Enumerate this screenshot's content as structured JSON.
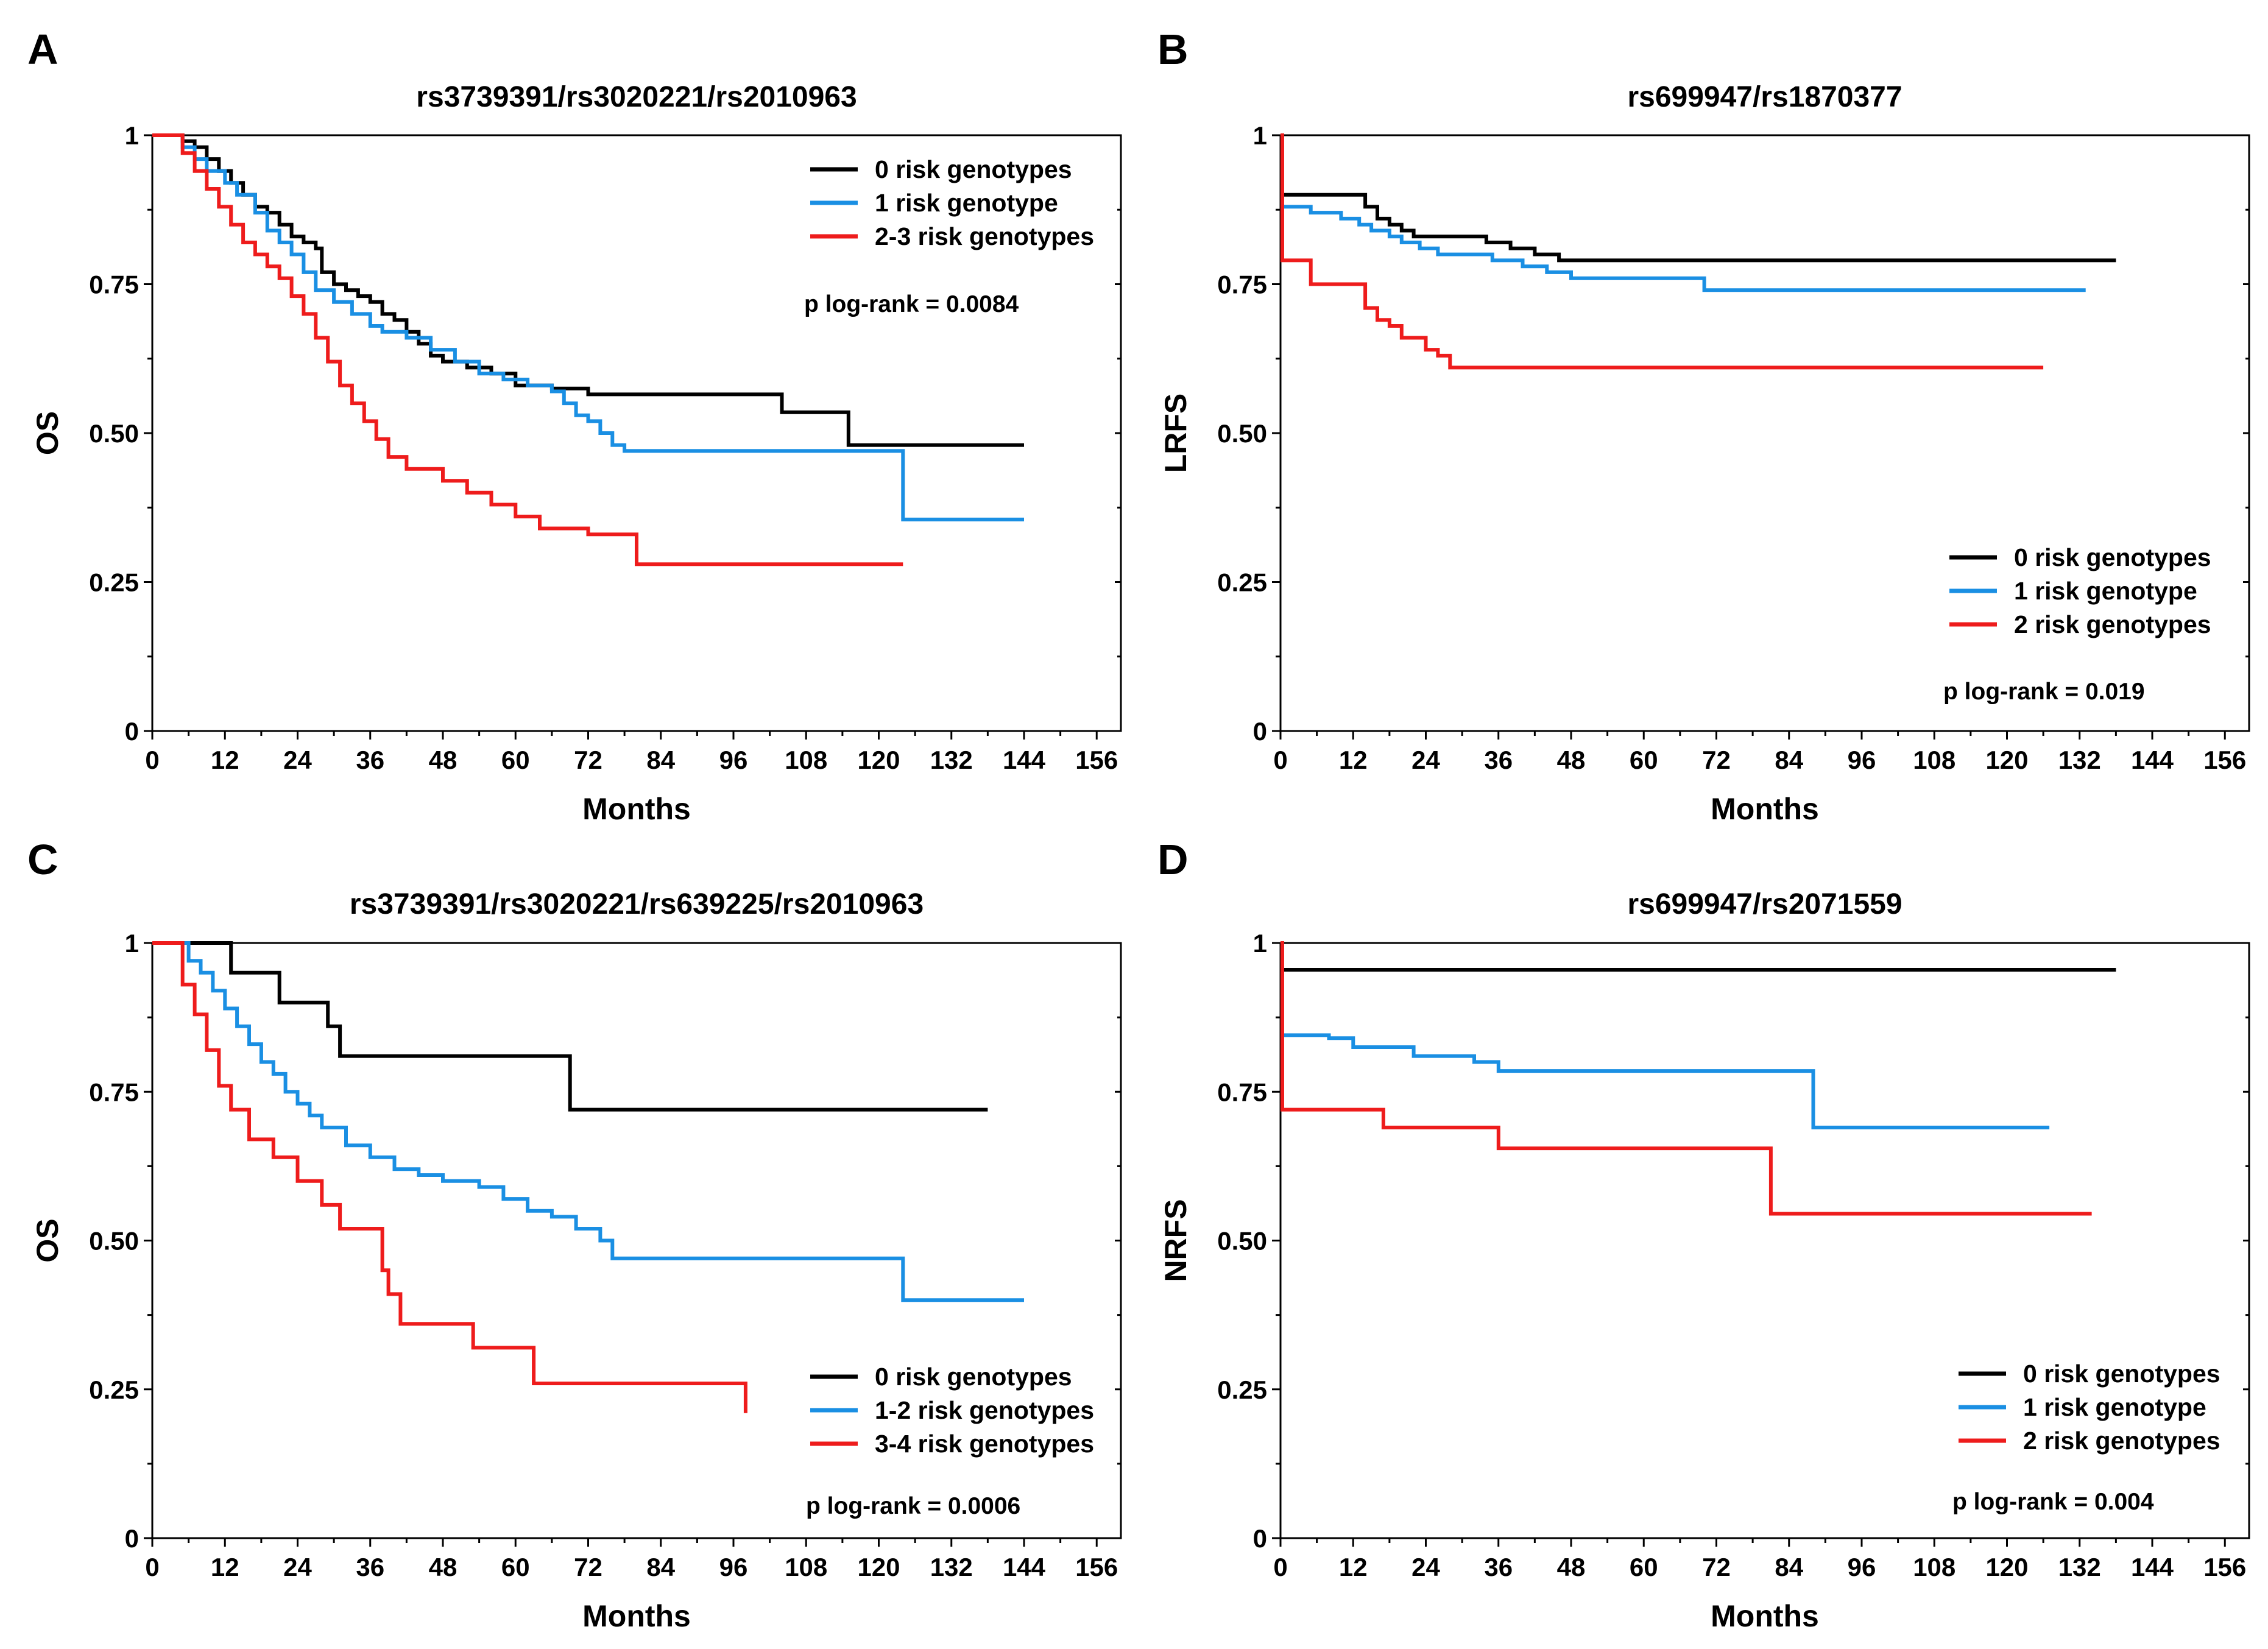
{
  "colors": {
    "black": "#000000",
    "blue": "#1a8fe3",
    "red": "#ee1c1c"
  },
  "chart_data": [
    {
      "type": "line",
      "panel": "A",
      "title": "rs3739391/rs3020221/rs2010963",
      "xlabel": "Months",
      "ylabel": "OS",
      "xlim": [
        0,
        160
      ],
      "ylim": [
        0,
        1
      ],
      "xticks": [
        "0",
        "12",
        "24",
        "36",
        "48",
        "60",
        "72",
        "84",
        "96",
        "108",
        "120",
        "132",
        "144",
        "156"
      ],
      "yticks": [
        {
          "v": 0,
          "label": "0"
        },
        {
          "v": 0.25,
          "label": "0.25"
        },
        {
          "v": 0.5,
          "label": "0.50"
        },
        {
          "v": 0.75,
          "label": "0.75"
        },
        {
          "v": 1,
          "label": "1"
        }
      ],
      "legend_position": "top-right",
      "p_text": "p log-rank = 0.0084",
      "series": [
        {
          "name": "0 risk genotypes",
          "color": "black",
          "x": [
            0,
            5,
            7,
            9,
            11,
            13,
            15,
            17,
            19,
            21,
            23,
            25,
            27,
            28,
            30,
            32,
            34,
            36,
            38,
            40,
            42,
            44,
            46,
            48,
            52,
            56,
            60,
            66,
            72,
            104,
            108,
            115,
            144
          ],
          "y": [
            1,
            0.99,
            0.98,
            0.96,
            0.94,
            0.92,
            0.9,
            0.88,
            0.87,
            0.85,
            0.83,
            0.82,
            0.81,
            0.77,
            0.75,
            0.74,
            0.73,
            0.72,
            0.7,
            0.69,
            0.67,
            0.65,
            0.63,
            0.62,
            0.61,
            0.6,
            0.58,
            0.575,
            0.565,
            0.535,
            0.535,
            0.48,
            0.48
          ]
        },
        {
          "name": "1 risk genotype",
          "color": "blue",
          "x": [
            0,
            5,
            7,
            9,
            12,
            14,
            17,
            19,
            21,
            23,
            25,
            27,
            30,
            33,
            36,
            38,
            42,
            46,
            50,
            54,
            58,
            62,
            66,
            68,
            70,
            72,
            74,
            76,
            78,
            124,
            144
          ],
          "y": [
            1,
            0.98,
            0.96,
            0.94,
            0.92,
            0.9,
            0.87,
            0.84,
            0.82,
            0.8,
            0.77,
            0.74,
            0.72,
            0.7,
            0.68,
            0.67,
            0.66,
            0.64,
            0.62,
            0.6,
            0.59,
            0.58,
            0.57,
            0.55,
            0.53,
            0.52,
            0.5,
            0.48,
            0.47,
            0.355,
            0.355
          ]
        },
        {
          "name": "2-3 risk genotypes",
          "color": "red",
          "x": [
            0,
            5,
            7,
            9,
            11,
            13,
            15,
            17,
            19,
            21,
            23,
            25,
            27,
            29,
            31,
            33,
            35,
            37,
            39,
            42,
            48,
            52,
            56,
            60,
            64,
            72,
            80,
            92,
            108,
            124
          ],
          "y": [
            1,
            0.97,
            0.94,
            0.91,
            0.88,
            0.85,
            0.82,
            0.8,
            0.78,
            0.76,
            0.73,
            0.7,
            0.66,
            0.62,
            0.58,
            0.55,
            0.52,
            0.49,
            0.46,
            0.44,
            0.42,
            0.4,
            0.38,
            0.36,
            0.34,
            0.33,
            0.28,
            0.28,
            0.28,
            0.28
          ]
        }
      ]
    },
    {
      "type": "line",
      "panel": "B",
      "title": "rs699947/rs1870377",
      "xlabel": "Months",
      "ylabel": "LRFS",
      "xlim": [
        0,
        160
      ],
      "ylim": [
        0,
        1
      ],
      "xticks": [
        "0",
        "12",
        "24",
        "36",
        "48",
        "60",
        "72",
        "84",
        "96",
        "108",
        "120",
        "132",
        "144",
        "156"
      ],
      "yticks": [
        {
          "v": 0,
          "label": "0"
        },
        {
          "v": 0.25,
          "label": "0.25"
        },
        {
          "v": 0.5,
          "label": "0.50"
        },
        {
          "v": 0.75,
          "label": "0.75"
        },
        {
          "v": 1,
          "label": "1"
        }
      ],
      "legend_position": "bottom-right",
      "p_text": "p log-rank = 0.019",
      "series": [
        {
          "name": "0 risk genotypes",
          "color": "black",
          "x": [
            0,
            0.3,
            12,
            14,
            16,
            18,
            20,
            22,
            26,
            30,
            34,
            38,
            42,
            46,
            56,
            70,
            100,
            130,
            138
          ],
          "y": [
            1,
            0.9,
            0.9,
            0.88,
            0.86,
            0.85,
            0.84,
            0.83,
            0.83,
            0.83,
            0.82,
            0.81,
            0.8,
            0.79,
            0.79,
            0.79,
            0.79,
            0.79,
            0.79
          ]
        },
        {
          "name": "1 risk genotype",
          "color": "blue",
          "x": [
            0,
            0.3,
            5,
            8,
            10,
            13,
            15,
            18,
            20,
            23,
            26,
            30,
            35,
            40,
            44,
            48,
            60,
            70,
            100,
            130,
            133
          ],
          "y": [
            1,
            0.88,
            0.87,
            0.87,
            0.86,
            0.85,
            0.84,
            0.83,
            0.82,
            0.81,
            0.8,
            0.8,
            0.79,
            0.78,
            0.77,
            0.76,
            0.76,
            0.74,
            0.74,
            0.74,
            0.74
          ]
        },
        {
          "name": "2 risk genotypes",
          "color": "red",
          "x": [
            0,
            0.3,
            5,
            14,
            16,
            18,
            20,
            24,
            26,
            28,
            60,
            100,
            126
          ],
          "y": [
            1,
            0.79,
            0.75,
            0.71,
            0.69,
            0.68,
            0.66,
            0.64,
            0.63,
            0.61,
            0.61,
            0.61,
            0.61
          ]
        }
      ]
    },
    {
      "type": "line",
      "panel": "C",
      "title": "rs3739391/rs3020221/rs639225/rs2010963",
      "xlabel": "Months",
      "ylabel": "OS",
      "xlim": [
        0,
        160
      ],
      "ylim": [
        0,
        1
      ],
      "xticks": [
        "0",
        "12",
        "24",
        "36",
        "48",
        "60",
        "72",
        "84",
        "96",
        "108",
        "120",
        "132",
        "144",
        "156"
      ],
      "yticks": [
        {
          "v": 0,
          "label": "0"
        },
        {
          "v": 0.25,
          "label": "0.25"
        },
        {
          "v": 0.5,
          "label": "0.50"
        },
        {
          "v": 0.75,
          "label": "0.75"
        },
        {
          "v": 1,
          "label": "1"
        }
      ],
      "legend_position": "bottom-right",
      "p_text": "p log-rank = 0.0006",
      "series": [
        {
          "name": "0 risk genotypes",
          "color": "black",
          "x": [
            0,
            13,
            21,
            29,
            31,
            69,
            138
          ],
          "y": [
            1,
            0.95,
            0.9,
            0.86,
            0.81,
            0.72,
            0.72
          ]
        },
        {
          "name": "1-2 risk genotypes",
          "color": "blue",
          "x": [
            0,
            6,
            8,
            10,
            12,
            14,
            16,
            18,
            20,
            22,
            24,
            26,
            28,
            32,
            36,
            40,
            44,
            48,
            54,
            58,
            62,
            66,
            70,
            74,
            76,
            124,
            144
          ],
          "y": [
            1,
            0.97,
            0.95,
            0.92,
            0.89,
            0.86,
            0.83,
            0.8,
            0.78,
            0.75,
            0.73,
            0.71,
            0.69,
            0.66,
            0.64,
            0.62,
            0.61,
            0.6,
            0.59,
            0.57,
            0.55,
            0.54,
            0.52,
            0.5,
            0.47,
            0.4,
            0.4
          ]
        },
        {
          "name": "3-4 risk genotypes",
          "color": "red",
          "x": [
            0,
            5,
            7,
            9,
            11,
            13,
            16,
            20,
            24,
            28,
            31,
            38,
            39,
            41,
            53,
            63,
            98
          ],
          "y": [
            1,
            0.93,
            0.88,
            0.82,
            0.76,
            0.72,
            0.67,
            0.64,
            0.6,
            0.56,
            0.52,
            0.45,
            0.41,
            0.36,
            0.32,
            0.26,
            0.21
          ]
        }
      ]
    },
    {
      "type": "line",
      "panel": "D",
      "title": "rs699947/rs2071559",
      "xlabel": "Months",
      "ylabel": "NRFS",
      "xlim": [
        0,
        160
      ],
      "ylim": [
        0,
        1
      ],
      "xticks": [
        "0",
        "12",
        "24",
        "36",
        "48",
        "60",
        "72",
        "84",
        "96",
        "108",
        "120",
        "132",
        "144",
        "156"
      ],
      "yticks": [
        {
          "v": 0,
          "label": "0"
        },
        {
          "v": 0.25,
          "label": "0.25"
        },
        {
          "v": 0.5,
          "label": "0.50"
        },
        {
          "v": 0.75,
          "label": "0.75"
        },
        {
          "v": 1,
          "label": "1"
        }
      ],
      "legend_position": "bottom-right",
      "p_text": "p log-rank = 0.004",
      "series": [
        {
          "name": "0 risk genotypes",
          "color": "black",
          "x": [
            0,
            0.3,
            138
          ],
          "y": [
            1,
            0.955,
            0.955
          ]
        },
        {
          "name": "1 risk genotype",
          "color": "blue",
          "x": [
            0,
            0.3,
            8,
            12,
            22,
            32,
            36,
            88,
            127
          ],
          "y": [
            1,
            0.845,
            0.84,
            0.825,
            0.81,
            0.8,
            0.785,
            0.69,
            0.69
          ]
        },
        {
          "name": "2 risk genotypes",
          "color": "red",
          "x": [
            0,
            0.3,
            17,
            36,
            81,
            134
          ],
          "y": [
            1,
            0.72,
            0.69,
            0.655,
            0.545,
            0.545
          ]
        }
      ]
    }
  ]
}
